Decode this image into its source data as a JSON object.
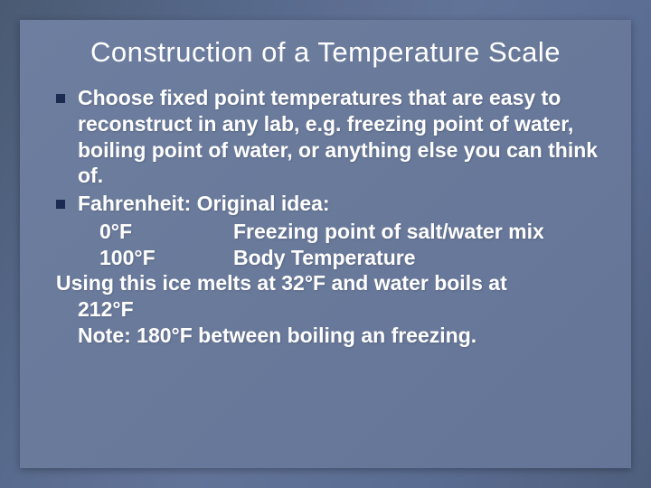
{
  "colors": {
    "slide_bg_start": "#4a5a72",
    "slide_bg_end": "#4e5e7c",
    "box_bg": "#6c7c9e",
    "bullet_color": "#1a2a50",
    "text_color": "#ffffff"
  },
  "typography": {
    "title_fontsize": 31,
    "body_fontsize": 23,
    "body_weight": "bold",
    "title_weight": "normal",
    "font_family": "Tahoma, Verdana, Arial, sans-serif"
  },
  "title": "Construction of a Temperature Scale",
  "bullets": [
    {
      "text": "Choose fixed point temperatures that are easy to reconstruct in any lab, e.g. freezing point of water, boiling point of water, or anything else you can think of."
    },
    {
      "text": "Fahrenheit: Original idea:",
      "subitems": [
        {
          "col1": "0°F",
          "col2": "Freezing point of salt/water mix"
        },
        {
          "col1": "100°F",
          "col2": "Body Temperature"
        }
      ]
    }
  ],
  "continuation_lines": [
    "Using this ice melts at 32°F and water boils at",
    "212°F",
    "Note: 180°F between boiling an freezing."
  ]
}
